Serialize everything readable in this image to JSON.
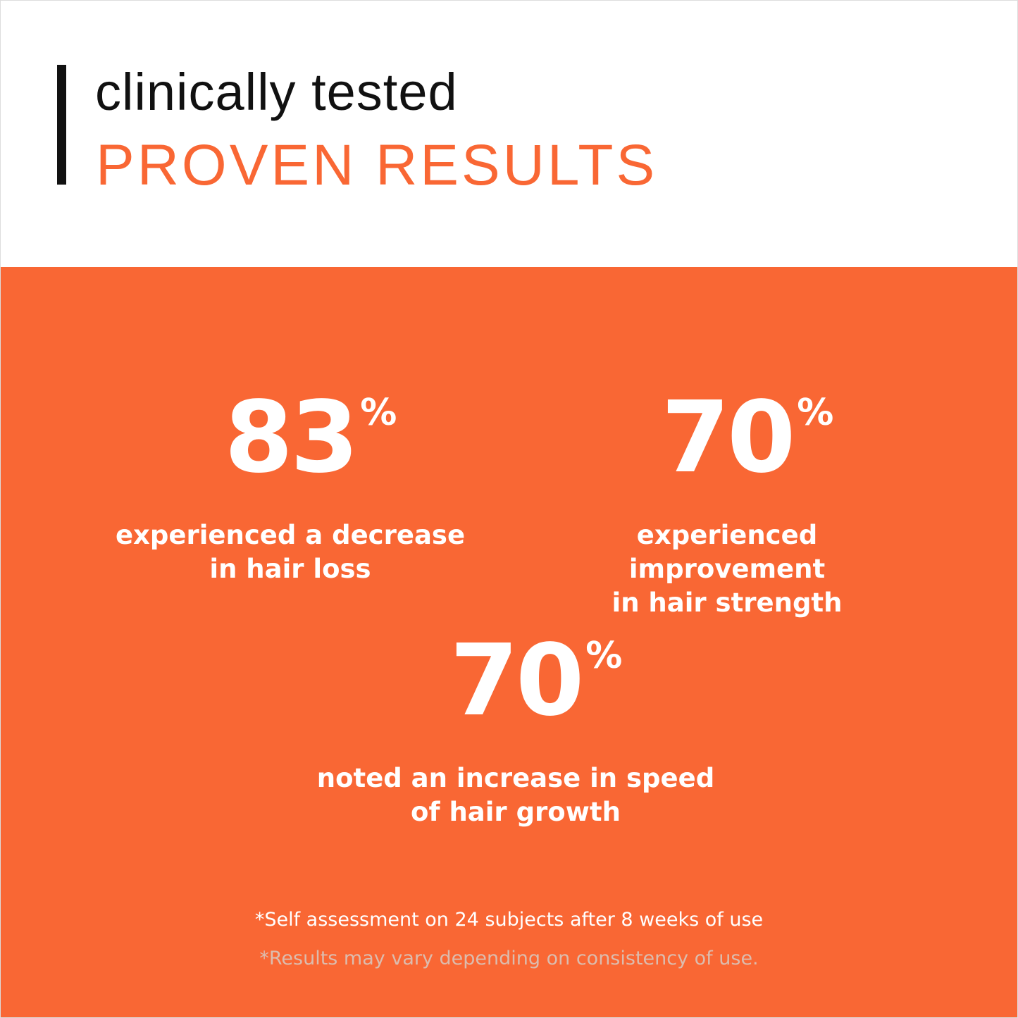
{
  "header": {
    "subtitle": "clinically tested",
    "title": "PROVEN RESULTS"
  },
  "stats": [
    {
      "value": "83",
      "unit": "%",
      "line1": "experienced a decrease",
      "line2": "in hair loss"
    },
    {
      "value": "70",
      "unit": "%",
      "line1": "experienced improvement",
      "line2": "in hair strength"
    },
    {
      "value": "70",
      "unit": "%",
      "line1": "noted an increase in speed",
      "line2": "of hair growth"
    }
  ],
  "footnotes": [
    "*Self assessment on 24 subjects after 8 weeks of use",
    "*Results may vary depending on consistency of use."
  ],
  "colors": {
    "accent": "#F96734",
    "text_dark": "#111111",
    "footnote_muted": "#dcbcae"
  }
}
